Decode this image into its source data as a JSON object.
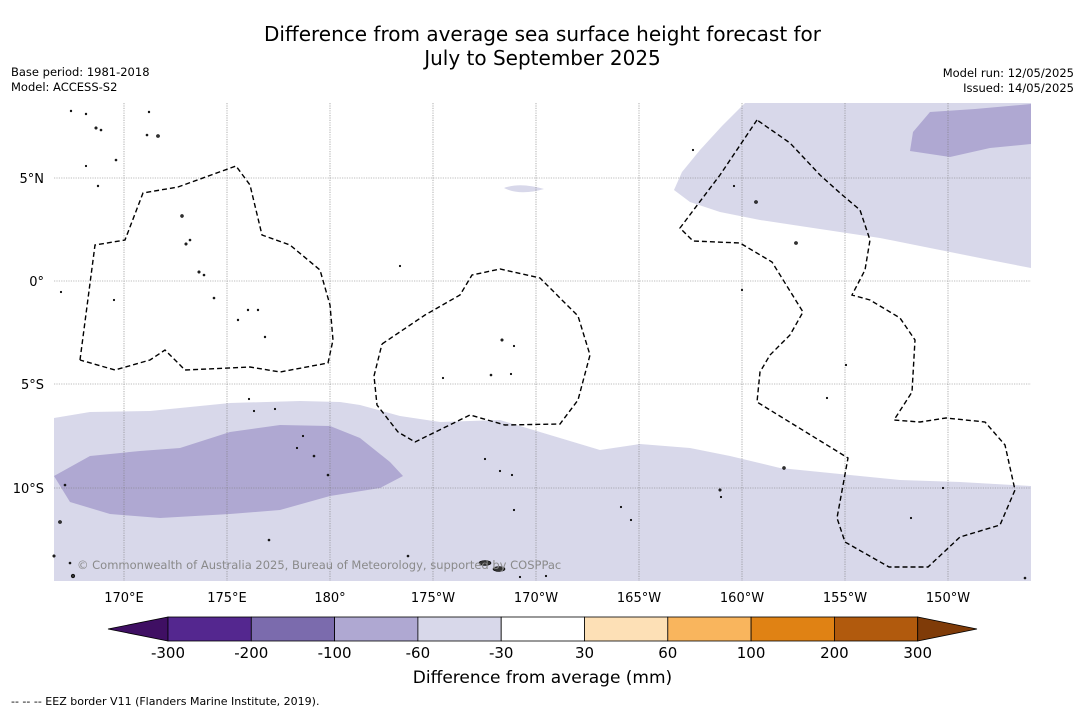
{
  "title_line1": "Difference from average sea surface height forecast for",
  "title_line2": "July to September 2025",
  "base_period": "Base period: 1981-2018",
  "model": "Model: ACCESS-S2",
  "model_run": "Model run: 12/05/2025",
  "issued": "Issued: 14/05/2025",
  "credit": "© Commonwealth of Australia 2025, Bureau of Meteorology, supported by COSPPac",
  "lat_labels": [
    "5°N",
    "0°",
    "5°S",
    "10°S"
  ],
  "lon_labels": [
    "170°E",
    "175°E",
    "180°",
    "175°W",
    "170°W",
    "165°W",
    "160°W",
    "155°W",
    "150°W"
  ],
  "colorbar": {
    "title": "Difference from average (mm)",
    "ticks": [
      "-300",
      "-200",
      "-100",
      "-60",
      "-30",
      "30",
      "60",
      "100",
      "200",
      "300"
    ],
    "colors": [
      "#3f0f63",
      "#54278f",
      "#7b6bad",
      "#afa8d2",
      "#d8d8ea",
      "#ffffff",
      "#fde0b6",
      "#f9b55d",
      "#e08214",
      "#b15a0d",
      "#7f3b08"
    ]
  },
  "eez_legend": "--  --  -- EEZ border V11 (Flanders Marine Institute, 2019)."
}
